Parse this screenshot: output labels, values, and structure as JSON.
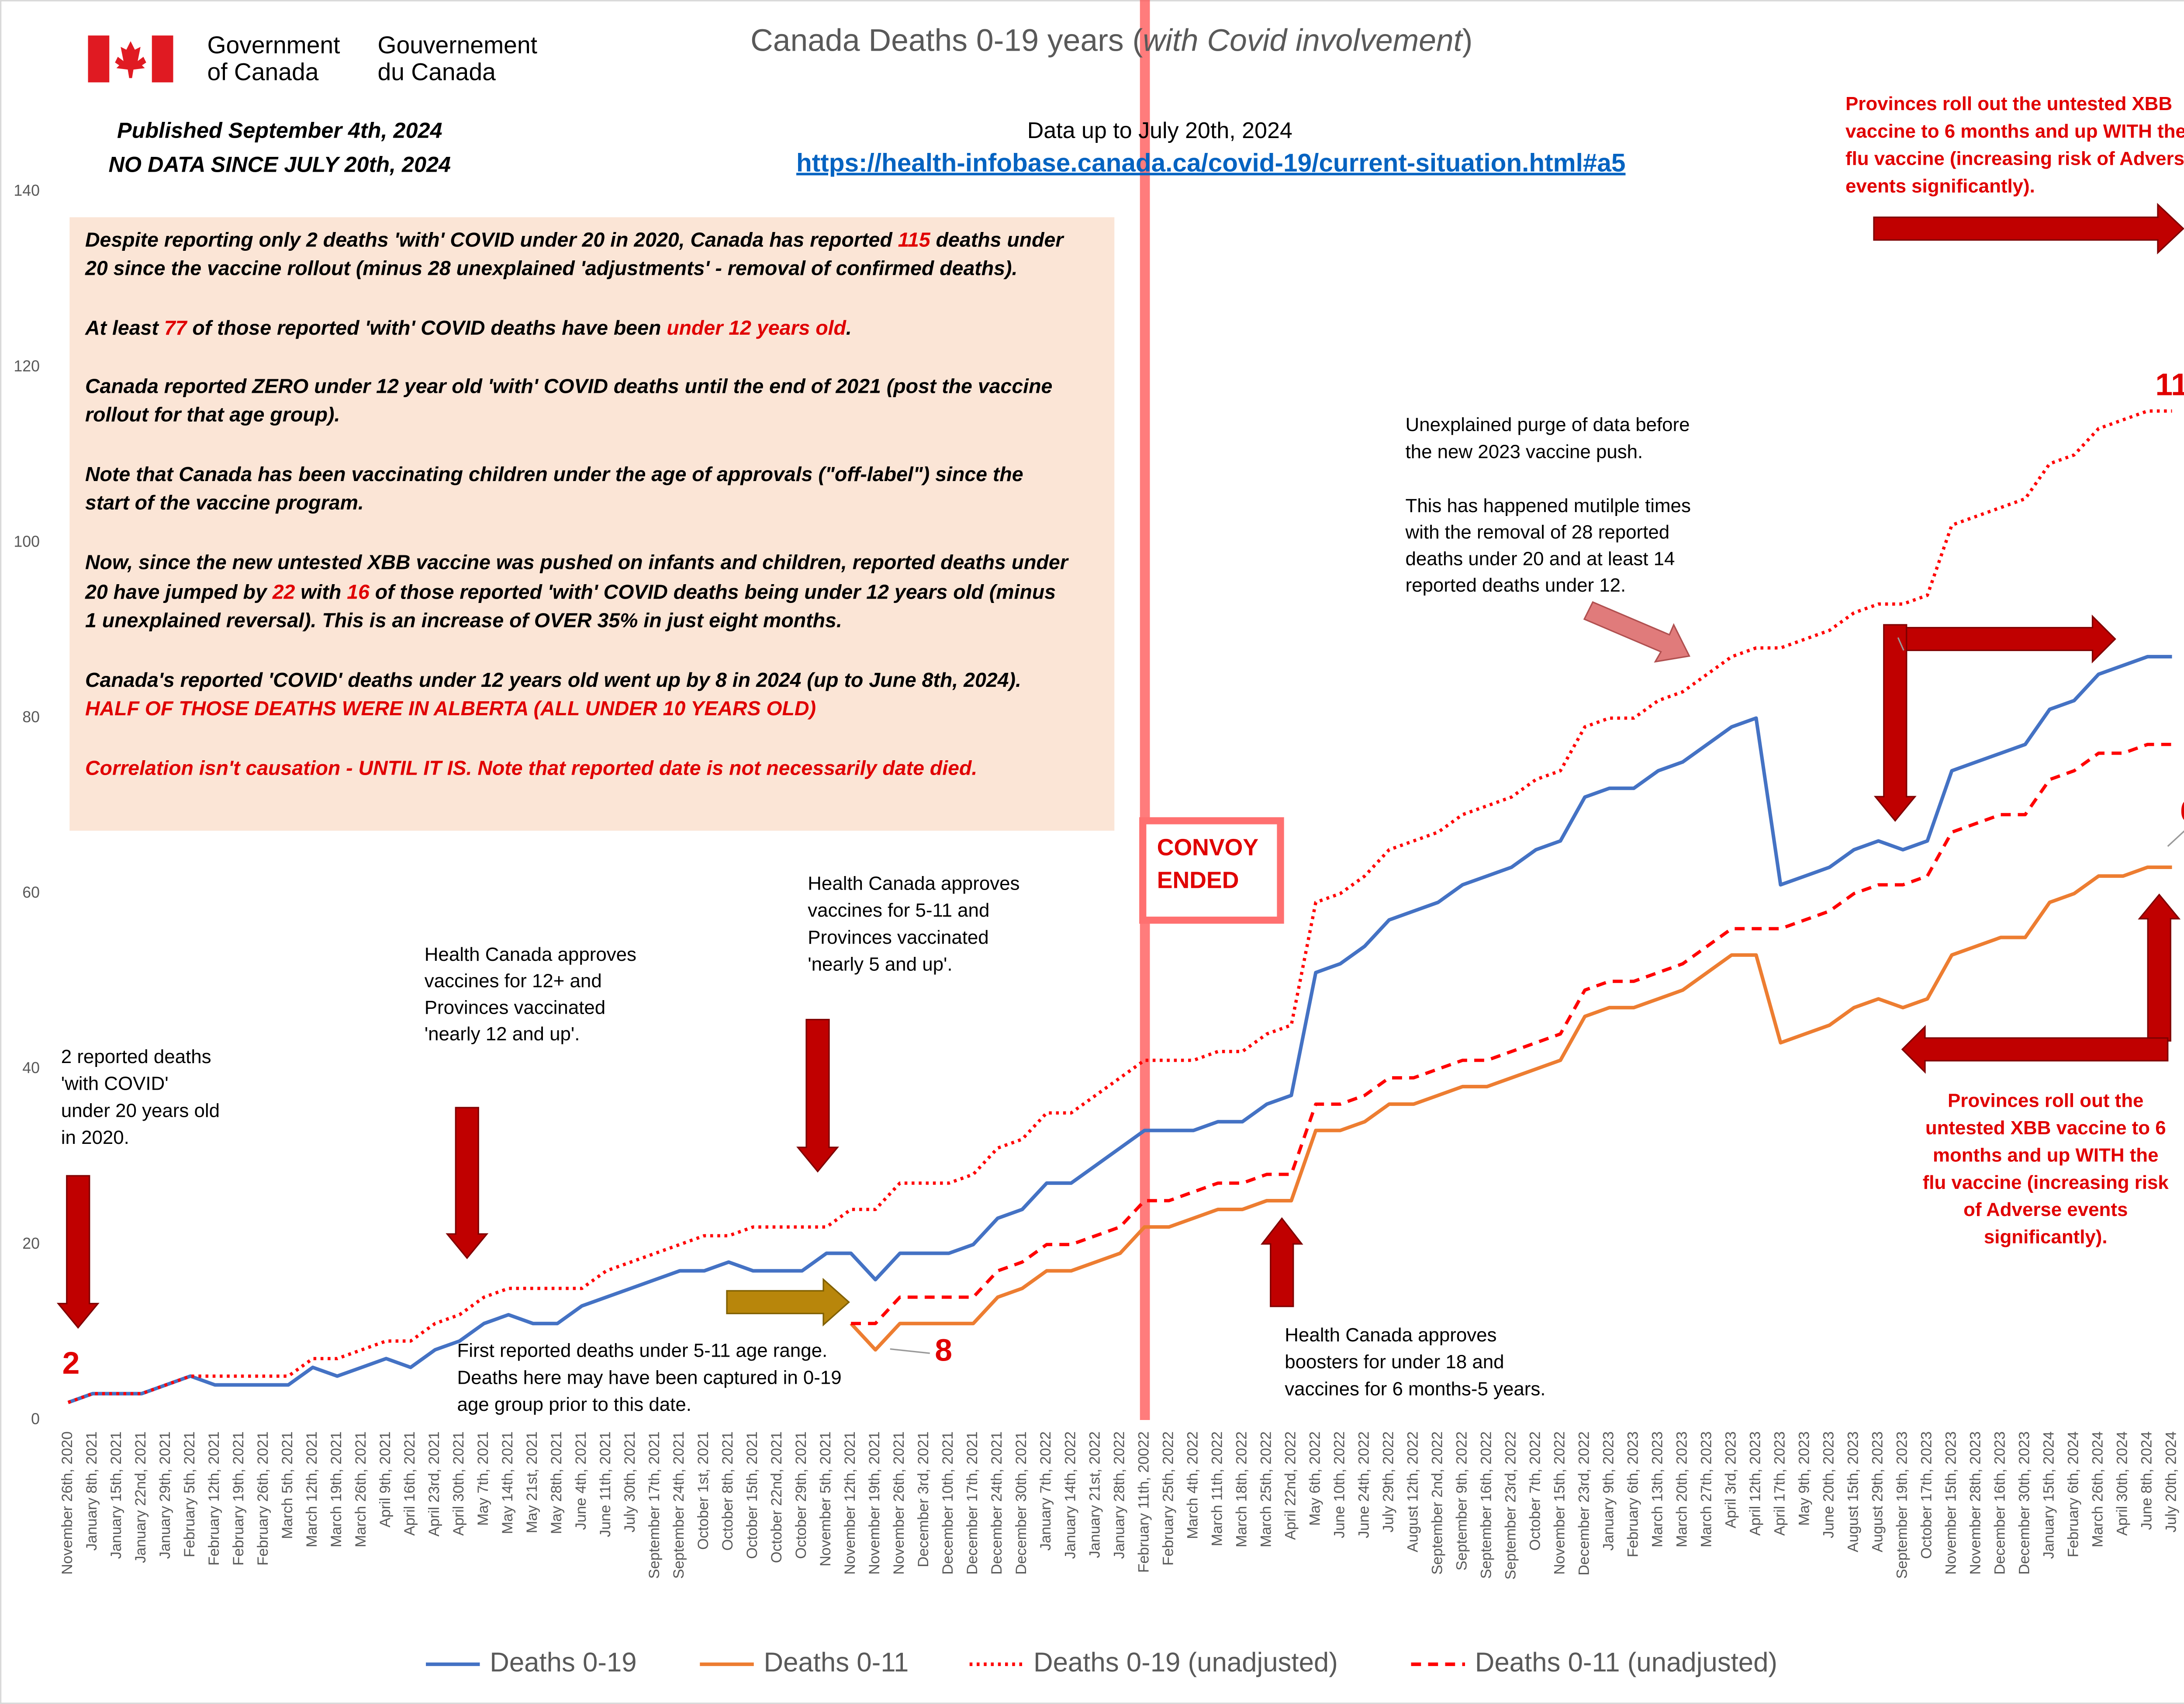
{
  "header": {
    "government_en": [
      "Government",
      "of Canada"
    ],
    "government_fr": [
      "Gouvernement",
      "du Canada"
    ],
    "published": [
      "Published September 4th, 2024",
      "NO DATA SINCE JULY 20th, 2024"
    ],
    "data_up_to": "Data up to July 20th, 2024",
    "source_url": "https://health-infobase.canada.ca/covid-19/current-situation.html#a5"
  },
  "chart_data": {
    "type": "line",
    "title_parts": [
      "Canada Deaths 0-19 years (",
      "with Covid involvement",
      ")"
    ],
    "categories": [
      "November 26th, 2020",
      "January 8th, 2021",
      "January 15th, 2021",
      "January 22nd, 2021",
      "January 29th, 2021",
      "February 5th, 2021",
      "February 12th, 2021",
      "February 19th, 2021",
      "February 26th, 2021",
      "March 5th, 2021",
      "March 12th, 2021",
      "March 19th, 2021",
      "March 26th, 2021",
      "April 9th, 2021",
      "April 16th, 2021",
      "April 23rd, 2021",
      "April 30th, 2021",
      "May 7th, 2021",
      "May 14th, 2021",
      "May 21st, 2021",
      "May 28th, 2021",
      "June 4th, 2021",
      "June 11th, 2021",
      "July 30th, 2021",
      "September 17th, 2021",
      "September 24th, 2021",
      "October 1st, 2021",
      "October 8th, 2021",
      "October 15th, 2021",
      "October 22nd, 2021",
      "October 29th, 2021",
      "November 5th, 2021",
      "November 12th, 2021",
      "November 19th, 2021",
      "November 26th, 2021",
      "December 3rd, 2021",
      "December 10th, 2021",
      "December 17th, 2021",
      "December 24th, 2021",
      "December 30th, 2021",
      "January 7th, 2022",
      "January 14th, 2022",
      "January 21st, 2022",
      "January 28th, 2022",
      "February 11th, 20022",
      "February 25th, 2022",
      "March 4th, 2022",
      "March 11th, 2022",
      "March 18th, 2022",
      "March 25th, 2022",
      "April 22nd, 2022",
      "May 6th, 2022",
      "June 10th, 2022",
      "June 24th, 2022",
      "July 29th, 2022",
      "August 12th, 2022",
      "September 2nd, 2022",
      "September 9th, 2022",
      "September 16th, 2022",
      "September 23rd, 2022",
      "October 7th, 2022",
      "November 15th, 2022",
      "December 23rd, 2022",
      "January 9th, 2023",
      "February 6th, 2023",
      "March 13th, 2023",
      "March 20th, 2023",
      "March 27th, 2023",
      "April 3rd, 2023",
      "April 12th, 2023",
      "April 17th, 2023",
      "May 9th, 2023",
      "June 20th, 2023",
      "August 15th, 2023",
      "August 29th, 2023",
      "September 19th, 2023",
      "October 17th, 2023",
      "November 15th, 2023",
      "November 28th, 2023",
      "December 16th, 2023",
      "December 30th, 2023",
      "January 15th, 2024",
      "February 6th, 2024",
      "March 26th, 2024",
      "April 30th, 2024",
      "June 8th, 2024",
      "July 20th, 2024"
    ],
    "series": [
      {
        "name": "Deaths 0-19",
        "color": "#4472c4",
        "style": "solid",
        "labeled": [
          0,
          86
        ],
        "values": [
          2,
          3,
          3,
          3,
          4,
          5,
          4,
          4,
          4,
          4,
          6,
          5,
          6,
          7,
          6,
          8,
          9,
          11,
          12,
          11,
          11,
          13,
          14,
          15,
          16,
          17,
          17,
          18,
          17,
          17,
          17,
          19,
          19,
          16,
          19,
          19,
          19,
          20,
          23,
          24,
          27,
          27,
          29,
          31,
          33,
          33,
          33,
          34,
          34,
          36,
          37,
          51,
          52,
          54,
          57,
          58,
          59,
          61,
          62,
          63,
          65,
          66,
          71,
          72,
          72,
          74,
          75,
          77,
          79,
          80,
          61,
          62,
          63,
          65,
          66,
          65,
          66,
          74,
          75,
          76,
          77,
          81,
          82,
          85,
          86,
          87,
          87
        ]
      },
      {
        "name": "Deaths 0-11",
        "color": "#ed7d31",
        "style": "solid",
        "labeled": [
          33,
          86
        ],
        "values": [
          null,
          null,
          null,
          null,
          null,
          null,
          null,
          null,
          null,
          null,
          null,
          null,
          null,
          null,
          null,
          null,
          null,
          null,
          null,
          null,
          null,
          null,
          null,
          null,
          null,
          null,
          null,
          null,
          null,
          null,
          null,
          null,
          11,
          8,
          11,
          11,
          11,
          11,
          14,
          15,
          17,
          17,
          18,
          19,
          22,
          22,
          23,
          24,
          24,
          25,
          25,
          33,
          33,
          34,
          36,
          36,
          37,
          38,
          38,
          39,
          40,
          41,
          46,
          47,
          47,
          48,
          49,
          51,
          53,
          53,
          43,
          44,
          45,
          47,
          48,
          47,
          48,
          53,
          54,
          55,
          55,
          59,
          60,
          62,
          62,
          63,
          63
        ]
      },
      {
        "name": "Deaths 0-19 (unadjusted)",
        "color": "#ff0000",
        "style": "dotted",
        "labeled": [
          86
        ],
        "values": [
          2,
          3,
          3,
          3,
          4,
          5,
          5,
          5,
          5,
          5,
          7,
          7,
          8,
          9,
          9,
          11,
          12,
          14,
          15,
          15,
          15,
          15,
          17,
          18,
          19,
          20,
          21,
          21,
          22,
          22,
          22,
          22,
          24,
          24,
          27,
          27,
          27,
          28,
          31,
          32,
          35,
          35,
          37,
          39,
          41,
          41,
          41,
          42,
          42,
          44,
          45,
          59,
          60,
          62,
          65,
          66,
          67,
          69,
          70,
          71,
          73,
          74,
          79,
          80,
          80,
          82,
          83,
          85,
          87,
          88,
          88,
          89,
          90,
          92,
          93,
          93,
          94,
          102,
          103,
          104,
          105,
          109,
          110,
          113,
          114,
          115,
          115
        ]
      },
      {
        "name": "Deaths 0-11 (unadjusted)",
        "color": "#ff0000",
        "style": "dashed",
        "labeled": [
          86
        ],
        "values": [
          null,
          null,
          null,
          null,
          null,
          null,
          null,
          null,
          null,
          null,
          null,
          null,
          null,
          null,
          null,
          null,
          null,
          null,
          null,
          null,
          null,
          null,
          null,
          null,
          null,
          null,
          null,
          null,
          null,
          null,
          null,
          null,
          11,
          11,
          14,
          14,
          14,
          14,
          17,
          18,
          20,
          20,
          21,
          22,
          25,
          25,
          26,
          27,
          27,
          28,
          28,
          36,
          36,
          37,
          39,
          39,
          40,
          41,
          41,
          42,
          43,
          44,
          49,
          50,
          50,
          51,
          52,
          54,
          56,
          56,
          56,
          57,
          58,
          60,
          61,
          61,
          62,
          67,
          68,
          69,
          69,
          73,
          74,
          76,
          76,
          77,
          77
        ]
      }
    ],
    "ylim": [
      0,
      140
    ],
    "yticks": [
      0,
      20,
      40,
      60,
      80,
      100,
      120,
      140
    ],
    "grid": false,
    "legend": "bottom",
    "label_color": "#e00000"
  },
  "annotation_box": {
    "color": "#fbe5d6",
    "lines": [
      [
        {
          "text": "Despite reporting only 2 deaths 'with' COVID under 20 in 2020, Canada has reported "
        },
        {
          "text": "115",
          "color": "#e00000"
        },
        {
          "text": " deaths under"
        }
      ],
      [
        {
          "text": "20 since the vaccine rollout (minus 28 unexplained 'adjustments' - removal of confirmed deaths)."
        }
      ],
      [
        {
          "text": "At least "
        },
        {
          "text": "77",
          "color": "#e00000"
        },
        {
          "text": " of those reported 'with' COVID deaths have been "
        },
        {
          "text": "under 12 years old",
          "color": "#e00000"
        },
        {
          "text": "."
        }
      ],
      [
        {
          "text": "Canada reported ZERO under 12 year old 'with' COVID deaths until the end of 2021 (post the vaccine"
        }
      ],
      [
        {
          "text": "rollout for that age group)."
        }
      ],
      [
        {
          "text": "Note that Canada has been vaccinating children under the age of approvals (\"off-label\") since the"
        }
      ],
      [
        {
          "text": "start of the vaccine program."
        }
      ],
      [
        {
          "text": "Now, since the new untested XBB vaccine was pushed on infants and children, reported deaths under"
        }
      ],
      [
        {
          "text": "20 have jumped by "
        },
        {
          "text": "22",
          "color": "#e00000"
        },
        {
          "text": " with "
        },
        {
          "text": "16",
          "color": "#e00000"
        },
        {
          "text": " of those reported 'with' COVID deaths being under 12 years old (minus"
        }
      ],
      [
        {
          "text": "1 unexplained reversal). This is an increase of OVER 35% in just eight months."
        }
      ],
      [
        {
          "text": "Canada's reported 'COVID' deaths under 12 years old went up by 8 in 2024 (up to June 8th, 2024)."
        }
      ],
      [
        {
          "text": "HALF OF THOSE DEATHS WERE IN ALBERTA (ALL UNDER 10 YEARS OLD)",
          "color": "#e00000"
        }
      ],
      [
        {
          "text": "Correlation isn't causation - UNTIL IT IS.  Note that reported date is not necessarily date died.",
          "color": "#e00000"
        }
      ]
    ]
  },
  "notes": [
    {
      "lines": [
        "2 reported deaths",
        "'with COVID'",
        "under 20 years old",
        "in 2020."
      ],
      "color": "#000000",
      "bold": false
    },
    {
      "lines": [
        "Health Canada approves",
        "vaccines for 12+ and",
        "Provinces vaccinated",
        "'nearly 12 and up'."
      ],
      "color": "#000000",
      "bold": false
    },
    {
      "lines": [
        "Health Canada approves",
        "vaccines for 5-11 and",
        "Provinces vaccinated",
        "'nearly 5 and up'."
      ],
      "color": "#000000",
      "bold": false
    },
    {
      "lines": [
        "First reported deaths under 5-11 age range.",
        "Deaths here may have been captured in 0-19",
        "age group prior to this date."
      ],
      "color": "#000000",
      "bold": false
    },
    {
      "lines": [
        "Health Canada approves",
        "boosters for under 18  and",
        "vaccines for 6 months-5 years."
      ],
      "color": "#000000",
      "bold": false
    },
    {
      "lines": [
        "Unexplained purge of data before",
        "the new 2023 vaccine push."
      ],
      "color": "#000000",
      "bold": false
    },
    {
      "lines": [
        "This has happened mutilple times",
        "with the removal of 28 reported",
        "deaths under 20 and at least 14",
        "reported deaths under 12."
      ],
      "color": "#000000",
      "bold": false
    },
    {
      "lines": [
        "Provinces roll out the untested XBB",
        "vaccine to 6 months and up WITH the",
        "flu vaccine (increasing risk of Adverse",
        "events significantly)."
      ],
      "color": "#e00000",
      "bold": true
    },
    {
      "lines": [
        "Provinces roll out the",
        "untested XBB vaccine to 6",
        "months and up WITH the",
        "flu vaccine (increasing risk",
        "of Adverse events",
        "significantly)."
      ],
      "color": "#e00000",
      "bold": true
    },
    {
      "lines": [
        "CONVOY",
        "ENDED"
      ],
      "color": "#e00000",
      "bold": true
    }
  ]
}
